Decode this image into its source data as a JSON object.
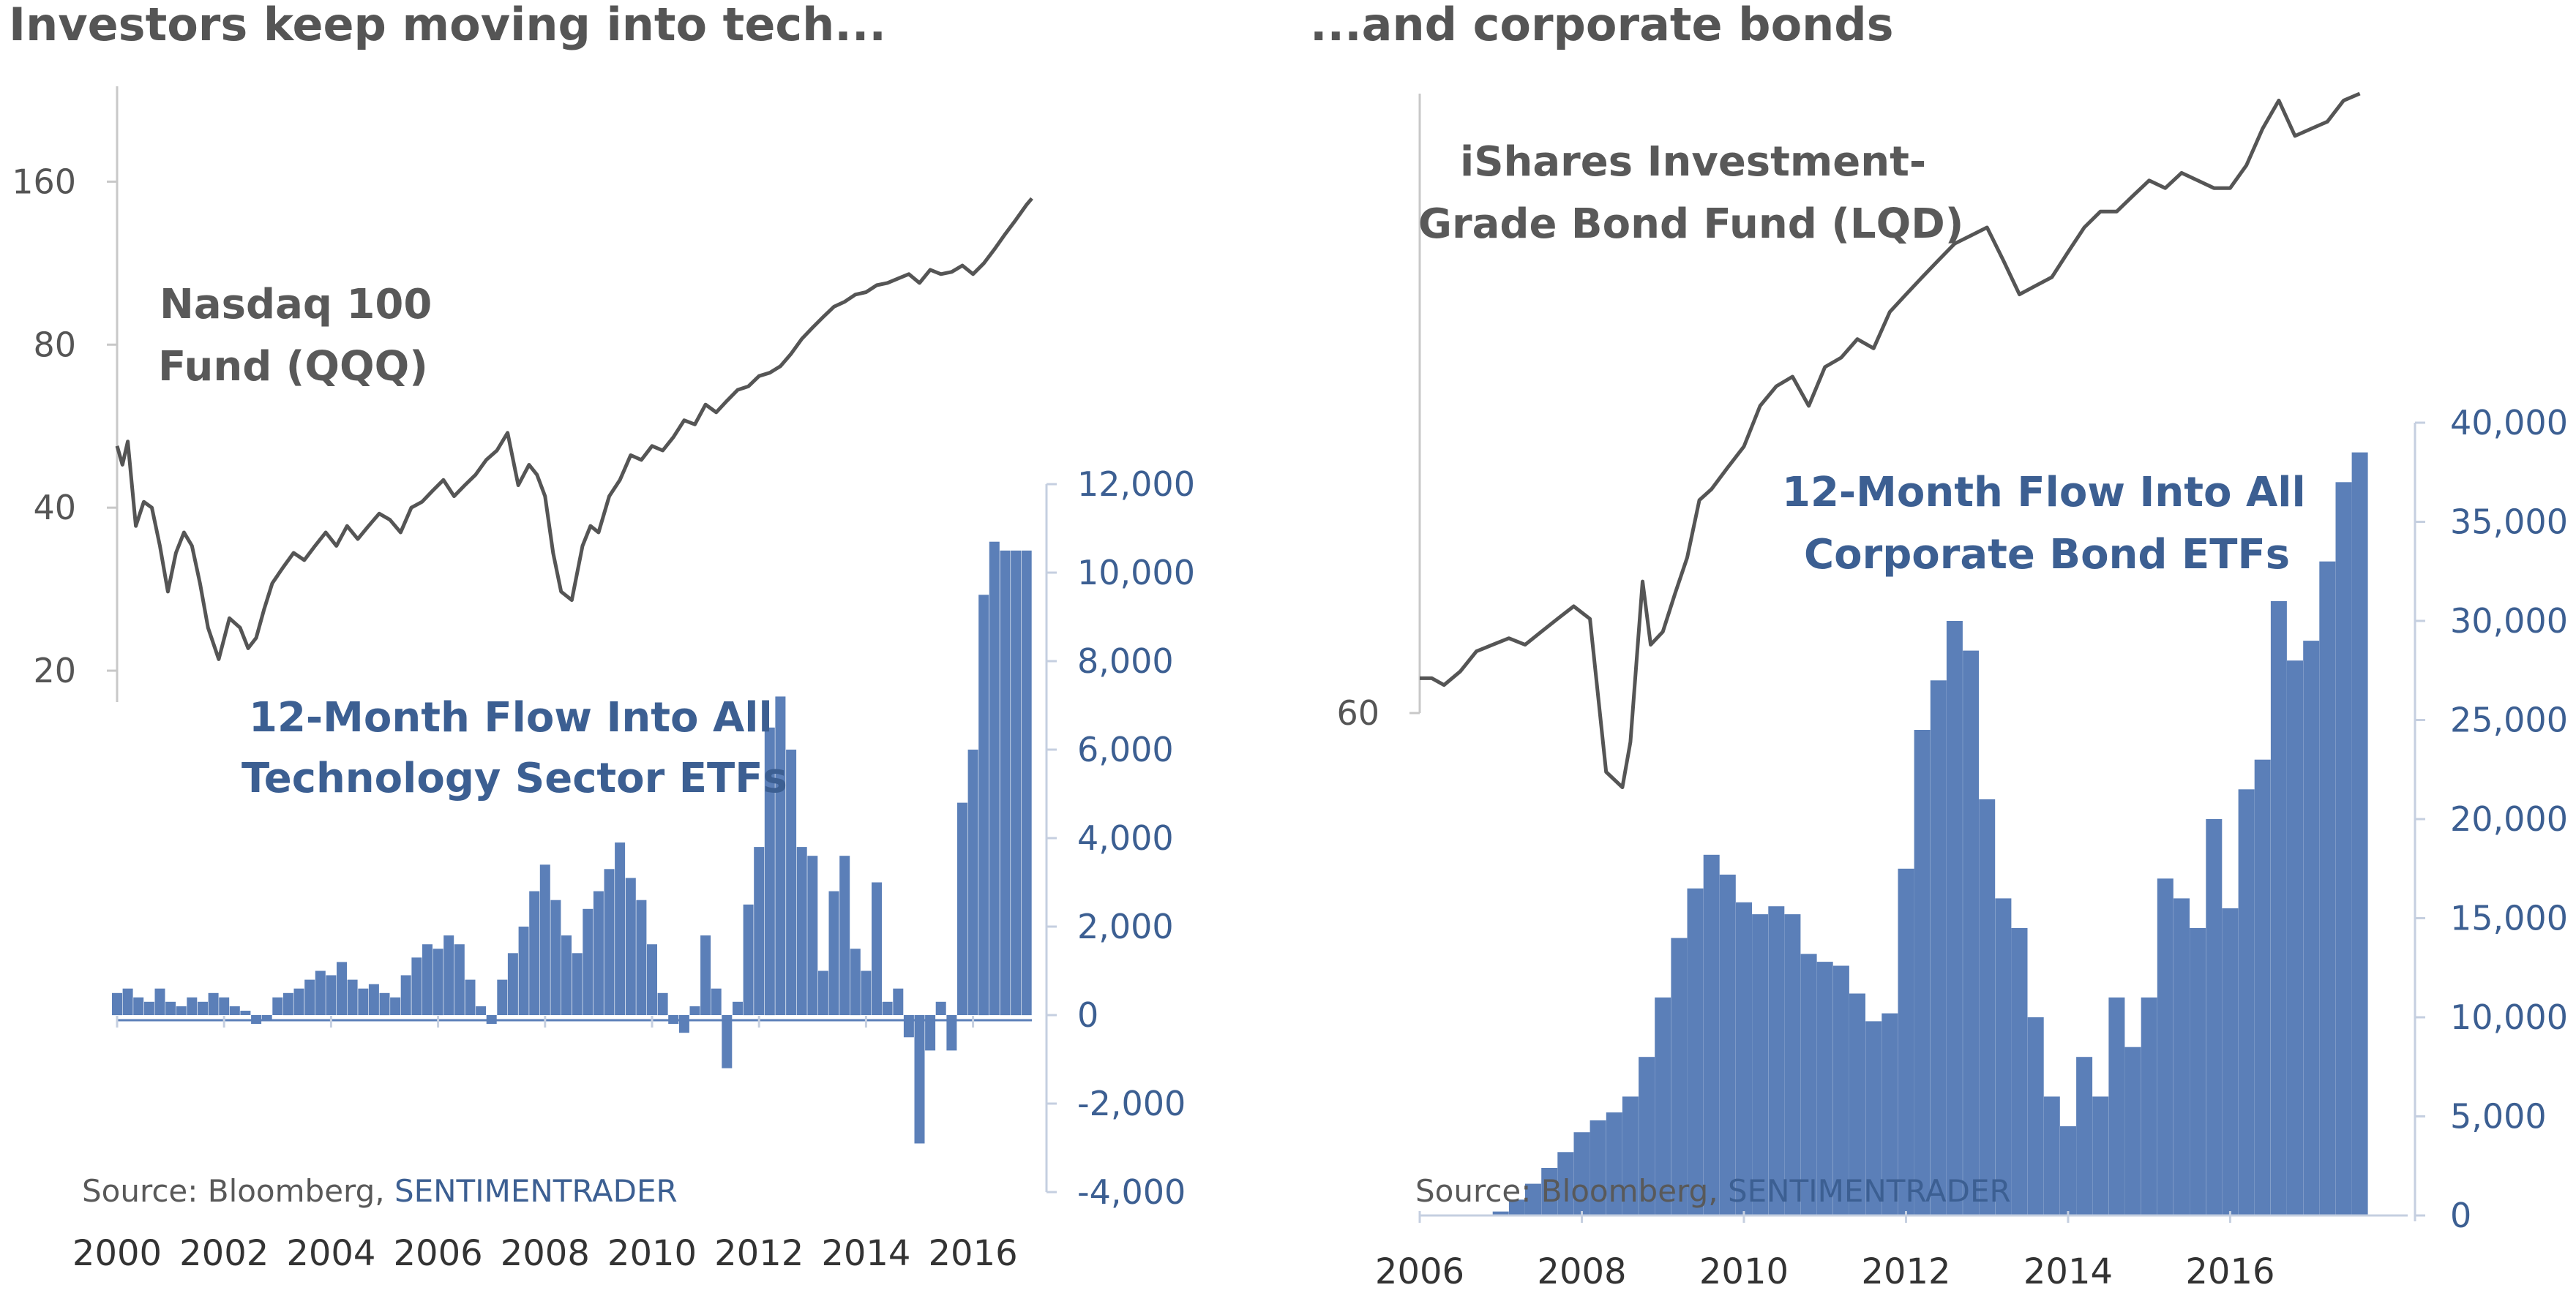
{
  "colors": {
    "bars": "#5b7fb8",
    "line": "#555555",
    "axis": "#c5cfe0",
    "title": "#555555",
    "flow_text": "#3c5f92"
  },
  "chart_data": [
    {
      "type": "bar",
      "title": "Investors keep moving into tech...",
      "price_label": [
        "Nasdaq 100",
        "Fund (QQQ)"
      ],
      "flow_label": [
        "12-Month Flow Into All",
        "Technology Sector ETFs"
      ],
      "source": {
        "prefix": "Source: Bloomberg, ",
        "brand": "SENTIMENTRADER"
      },
      "x_ticks": [
        "2000",
        "2002",
        "2004",
        "2006",
        "2008",
        "2010",
        "2012",
        "2014",
        "2016"
      ],
      "x_tick_values": [
        2000,
        2002,
        2004,
        2006,
        2008,
        2010,
        2012,
        2014,
        2016
      ],
      "xlim": [
        2000,
        2017.1
      ],
      "price_axis": {
        "scale": "log",
        "ylim": [
          17.5,
          240
        ],
        "ticks": [
          "20",
          "40",
          "80",
          "160"
        ],
        "tick_values": [
          20,
          40,
          80,
          160
        ]
      },
      "flow_axis": {
        "ylim": [
          -4000,
          12000
        ],
        "ticks": [
          "12,000",
          "10,000",
          "8,000",
          "6,000",
          "4,000",
          "2,000",
          "0",
          "-2,000",
          "-4,000"
        ],
        "tick_values": [
          12000,
          10000,
          8000,
          6000,
          4000,
          2000,
          0,
          -2000,
          -4000
        ]
      },
      "price_series": {
        "name": "Nasdaq 100 Fund (QQQ)",
        "x": [
          2000.0,
          2000.1,
          2000.2,
          2000.35,
          2000.5,
          2000.65,
          2000.8,
          2000.95,
          2001.1,
          2001.25,
          2001.4,
          2001.55,
          2001.7,
          2001.9,
          2002.1,
          2002.3,
          2002.45,
          2002.6,
          2002.75,
          2002.9,
          2003.1,
          2003.3,
          2003.5,
          2003.7,
          2003.9,
          2004.1,
          2004.3,
          2004.5,
          2004.7,
          2004.9,
          2005.1,
          2005.3,
          2005.5,
          2005.7,
          2005.9,
          2006.1,
          2006.3,
          2006.5,
          2006.7,
          2006.9,
          2007.1,
          2007.3,
          2007.5,
          2007.7,
          2007.85,
          2008.0,
          2008.15,
          2008.3,
          2008.5,
          2008.7,
          2008.85,
          2009.0,
          2009.2,
          2009.4,
          2009.6,
          2009.8,
          2010.0,
          2010.2,
          2010.4,
          2010.6,
          2010.8,
          2011.0,
          2011.2,
          2011.4,
          2011.6,
          2011.8,
          2012.0,
          2012.2,
          2012.4,
          2012.6,
          2012.8,
          2013.0,
          2013.2,
          2013.4,
          2013.6,
          2013.8,
          2014.0,
          2014.2,
          2014.4,
          2014.6,
          2014.8,
          2015.0,
          2015.2,
          2015.4,
          2015.6,
          2015.8,
          2016.0,
          2016.2,
          2016.4,
          2016.6,
          2016.8,
          2017.0,
          2017.1
        ],
        "y": [
          52,
          48,
          53,
          37,
          41,
          40,
          34,
          28,
          33,
          36,
          34,
          29,
          24,
          21,
          25,
          24,
          22,
          23,
          26,
          29,
          31,
          33,
          32,
          34,
          36,
          34,
          37,
          35,
          37,
          39,
          38,
          36,
          40,
          41,
          43,
          45,
          42,
          44,
          46,
          49,
          51,
          55,
          44,
          48,
          46,
          42,
          33,
          28,
          27,
          34,
          37,
          36,
          42,
          45,
          50,
          49,
          52,
          51,
          54,
          58,
          57,
          62,
          60,
          63,
          66,
          67,
          70,
          71,
          73,
          77,
          82,
          86,
          90,
          94,
          96,
          99,
          100,
          103,
          104,
          106,
          108,
          104,
          110,
          108,
          109,
          112,
          108,
          113,
          120,
          128,
          136,
          145,
          149
        ]
      },
      "flow_series": {
        "name": "12-Month Flow Into All Technology Sector ETFs",
        "x": [
          2000.0,
          2000.2,
          2000.4,
          2000.6,
          2000.8,
          2001.0,
          2001.2,
          2001.4,
          2001.6,
          2001.8,
          2002.0,
          2002.2,
          2002.4,
          2002.6,
          2002.8,
          2003.0,
          2003.2,
          2003.4,
          2003.6,
          2003.8,
          2004.0,
          2004.2,
          2004.4,
          2004.6,
          2004.8,
          2005.0,
          2005.2,
          2005.4,
          2005.6,
          2005.8,
          2006.0,
          2006.2,
          2006.4,
          2006.6,
          2006.8,
          2007.0,
          2007.2,
          2007.4,
          2007.6,
          2007.8,
          2008.0,
          2008.2,
          2008.4,
          2008.6,
          2008.8,
          2009.0,
          2009.2,
          2009.4,
          2009.6,
          2009.8,
          2010.0,
          2010.2,
          2010.4,
          2010.6,
          2010.8,
          2011.0,
          2011.2,
          2011.4,
          2011.6,
          2011.8,
          2012.0,
          2012.2,
          2012.4,
          2012.6,
          2012.8,
          2013.0,
          2013.2,
          2013.4,
          2013.6,
          2013.8,
          2014.0,
          2014.2,
          2014.4,
          2014.6,
          2014.8,
          2015.0,
          2015.2,
          2015.4,
          2015.6,
          2015.8,
          2016.0,
          2016.2,
          2016.4,
          2016.6,
          2016.8,
          2017.0
        ],
        "y": [
          500,
          600,
          400,
          300,
          600,
          300,
          200,
          400,
          300,
          500,
          400,
          200,
          100,
          -200,
          -100,
          400,
          500,
          600,
          800,
          1000,
          900,
          1200,
          800,
          600,
          700,
          500,
          400,
          900,
          1300,
          1600,
          1500,
          1800,
          1600,
          800,
          200,
          -200,
          800,
          1400,
          2000,
          2800,
          3400,
          2600,
          1800,
          1400,
          2400,
          2800,
          3300,
          3900,
          3100,
          2600,
          1600,
          500,
          -200,
          -400,
          200,
          1800,
          600,
          -1200,
          300,
          2500,
          3800,
          6500,
          7200,
          6000,
          3800,
          3600,
          1000,
          2800,
          3600,
          1500,
          1000,
          3000,
          300,
          600,
          -500,
          -2900,
          -800,
          300,
          -800,
          4800,
          6000,
          9500,
          10700,
          10500,
          10500,
          10500
        ]
      }
    },
    {
      "type": "bar",
      "title": "...and corporate bonds",
      "price_label": [
        "iShares Investment-",
        "Grade Bond Fund (LQD)"
      ],
      "flow_label": [
        "12-Month Flow Into All",
        "Corporate Bond ETFs"
      ],
      "source": {
        "prefix": "Source: Bloomberg, ",
        "brand": "SENTIMENTRADER"
      },
      "x_ticks": [
        "2006",
        "2008",
        "2010",
        "2012",
        "2014",
        "2016"
      ],
      "x_tick_values": [
        2006,
        2008,
        2010,
        2012,
        2014,
        2016
      ],
      "xlim": [
        2006,
        2018.1
      ],
      "price_axis": {
        "scale": "log",
        "ylim": [
          60,
          124
        ],
        "ticks": [
          "60"
        ],
        "tick_values": [
          60
        ]
      },
      "flow_axis": {
        "ylim": [
          0,
          40000
        ],
        "ticks": [
          "40,000",
          "35,000",
          "30,000",
          "25,000",
          "20,000",
          "15,000",
          "10,000",
          "5,000",
          "0"
        ],
        "tick_values": [
          40000,
          35000,
          30000,
          25000,
          20000,
          15000,
          10000,
          5000,
          0
        ]
      },
      "price_series": {
        "name": "iShares Investment-Grade Bond Fund (LQD)",
        "x": [
          2006.0,
          2006.15,
          2006.3,
          2006.5,
          2006.7,
          2006.9,
          2007.1,
          2007.3,
          2007.5,
          2007.7,
          2007.9,
          2008.1,
          2008.3,
          2008.5,
          2008.6,
          2008.75,
          2008.85,
          2009.0,
          2009.15,
          2009.3,
          2009.45,
          2009.6,
          2009.8,
          2010.0,
          2010.2,
          2010.4,
          2010.6,
          2010.8,
          2011.0,
          2011.2,
          2011.4,
          2011.6,
          2011.8,
          2012.0,
          2012.2,
          2012.4,
          2012.6,
          2012.8,
          2013.0,
          2013.2,
          2013.4,
          2013.6,
          2013.8,
          2014.0,
          2014.2,
          2014.4,
          2014.6,
          2014.8,
          2015.0,
          2015.2,
          2015.4,
          2015.6,
          2015.8,
          2016.0,
          2016.2,
          2016.4,
          2016.6,
          2016.8,
          2017.0,
          2017.2,
          2017.4,
          2017.6
        ],
        "y": [
          62.5,
          62.5,
          62,
          63,
          64.5,
          65,
          65.5,
          65,
          66,
          67,
          68,
          67,
          56,
          55,
          58,
          70,
          65,
          66,
          69,
          72,
          77,
          78,
          80,
          82,
          86,
          88,
          89,
          86,
          90,
          91,
          93,
          92,
          96,
          98,
          100,
          102,
          104,
          105,
          106,
          102,
          98,
          99,
          100,
          103,
          106,
          108,
          108,
          110,
          112,
          111,
          113,
          112,
          111,
          111,
          114,
          119,
          123,
          118,
          119,
          120,
          123,
          124
        ]
      },
      "flow_series": {
        "name": "12-Month Flow Into All Corporate Bond ETFs",
        "x": [
          2007.0,
          2007.2,
          2007.4,
          2007.6,
          2007.8,
          2008.0,
          2008.2,
          2008.4,
          2008.6,
          2008.8,
          2009.0,
          2009.2,
          2009.4,
          2009.6,
          2009.8,
          2010.0,
          2010.2,
          2010.4,
          2010.6,
          2010.8,
          2011.0,
          2011.2,
          2011.4,
          2011.6,
          2011.8,
          2012.0,
          2012.2,
          2012.4,
          2012.6,
          2012.8,
          2013.0,
          2013.2,
          2013.4,
          2013.6,
          2013.8,
          2014.0,
          2014.2,
          2014.4,
          2014.6,
          2014.8,
          2015.0,
          2015.2,
          2015.4,
          2015.6,
          2015.8,
          2016.0,
          2016.2,
          2016.4,
          2016.6,
          2016.8,
          2017.0,
          2017.2,
          2017.4,
          2017.6
        ],
        "y": [
          200,
          800,
          1600,
          2400,
          3200,
          4200,
          4800,
          5200,
          6000,
          8000,
          11000,
          14000,
          16500,
          18200,
          17200,
          15800,
          15200,
          15600,
          15200,
          13200,
          12800,
          12600,
          11200,
          9800,
          10200,
          17500,
          24500,
          27000,
          30000,
          28500,
          21000,
          16000,
          14500,
          10000,
          6000,
          4500,
          8000,
          6000,
          11000,
          8500,
          11000,
          17000,
          16000,
          14500,
          20000,
          15500,
          21500,
          23000,
          31000,
          28000,
          29000,
          33000,
          37000,
          38500
        ]
      }
    }
  ]
}
